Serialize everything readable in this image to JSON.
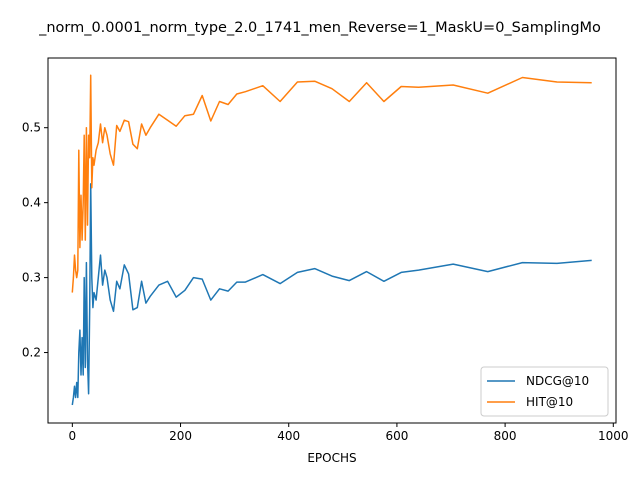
{
  "chart_data": {
    "type": "line",
    "title": "_norm_0.0001_norm_type_2.0_1741_men_Reverse=1_MaskU=0_SamplingMo",
    "xlabel": "EPOCHS",
    "ylabel": "",
    "xlim": [
      -45,
      1005
    ],
    "ylim": [
      0.106,
      0.593
    ],
    "xticks": [
      0,
      200,
      400,
      600,
      800,
      1000
    ],
    "yticks": [
      0.2,
      0.3,
      0.4,
      0.5
    ],
    "xtick_labels": [
      "0",
      "200",
      "400",
      "600",
      "800",
      "1000"
    ],
    "ytick_labels": [
      "0.2",
      "0.3",
      "0.4",
      "0.5"
    ],
    "grid": false,
    "legend_position": "lower-right",
    "series": [
      {
        "name": "NDCG@10",
        "color": "#1f77b4",
        "x": [
          0,
          2,
          4,
          6,
          8,
          10,
          12,
          14,
          16,
          18,
          20,
          22,
          24,
          26,
          28,
          30,
          32,
          34,
          36,
          38,
          40,
          44,
          48,
          52,
          56,
          60,
          64,
          70,
          76,
          82,
          88,
          96,
          104,
          112,
          120,
          128,
          136,
          144,
          160,
          176,
          192,
          208,
          224,
          240,
          256,
          272,
          288,
          304,
          320,
          352,
          384,
          416,
          448,
          480,
          512,
          544,
          576,
          608,
          640,
          704,
          768,
          832,
          896,
          960
        ],
        "y": [
          0.13,
          0.14,
          0.155,
          0.14,
          0.16,
          0.14,
          0.2,
          0.23,
          0.17,
          0.22,
          0.17,
          0.3,
          0.18,
          0.32,
          0.19,
          0.145,
          0.26,
          0.425,
          0.3,
          0.26,
          0.28,
          0.27,
          0.3,
          0.33,
          0.29,
          0.31,
          0.3,
          0.27,
          0.255,
          0.295,
          0.285,
          0.317,
          0.305,
          0.257,
          0.26,
          0.295,
          0.266,
          0.275,
          0.29,
          0.295,
          0.274,
          0.283,
          0.3,
          0.298,
          0.27,
          0.285,
          0.282,
          0.294,
          0.294,
          0.304,
          0.292,
          0.307,
          0.312,
          0.302,
          0.296,
          0.308,
          0.295,
          0.307,
          0.31,
          0.318,
          0.308,
          0.32,
          0.319,
          0.323
        ]
      },
      {
        "name": "HIT@10",
        "color": "#ff7f0e",
        "x": [
          0,
          2,
          4,
          6,
          8,
          10,
          12,
          14,
          16,
          18,
          20,
          22,
          24,
          26,
          28,
          30,
          32,
          34,
          36,
          38,
          40,
          44,
          48,
          52,
          56,
          60,
          64,
          70,
          76,
          82,
          88,
          96,
          104,
          112,
          120,
          128,
          136,
          144,
          160,
          176,
          192,
          208,
          224,
          240,
          256,
          272,
          288,
          304,
          320,
          352,
          384,
          416,
          448,
          480,
          512,
          544,
          576,
          608,
          640,
          704,
          768,
          832,
          896,
          960
        ],
        "y": [
          0.28,
          0.3,
          0.33,
          0.31,
          0.3,
          0.31,
          0.47,
          0.34,
          0.41,
          0.35,
          0.4,
          0.49,
          0.35,
          0.5,
          0.37,
          0.49,
          0.46,
          0.57,
          0.42,
          0.46,
          0.45,
          0.47,
          0.48,
          0.505,
          0.48,
          0.5,
          0.49,
          0.465,
          0.45,
          0.503,
          0.495,
          0.51,
          0.508,
          0.478,
          0.472,
          0.505,
          0.49,
          0.5,
          0.518,
          0.51,
          0.502,
          0.516,
          0.518,
          0.543,
          0.509,
          0.535,
          0.531,
          0.545,
          0.548,
          0.556,
          0.535,
          0.561,
          0.562,
          0.552,
          0.535,
          0.56,
          0.535,
          0.555,
          0.554,
          0.557,
          0.546,
          0.567,
          0.561,
          0.56
        ]
      }
    ]
  }
}
